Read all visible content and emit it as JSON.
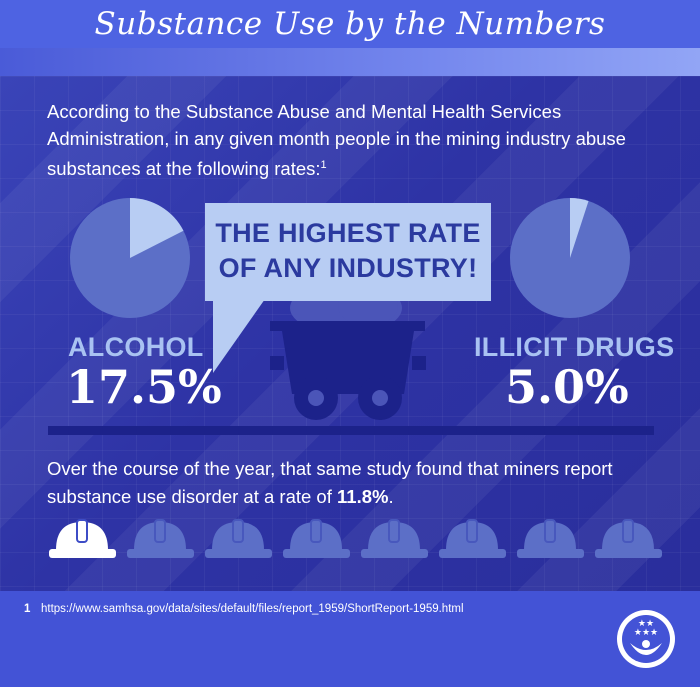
{
  "title": "Substance Use by the Numbers",
  "intro": {
    "text": "According to the Substance Abuse and Mental Health Services Administration, in any given month people in the mining industry abuse substances at the following rates:",
    "footnote_ref": "1"
  },
  "stats": {
    "alcohol": {
      "label": "ALCOHOL",
      "value": "17.5%",
      "fraction": 0.175
    },
    "drugs": {
      "label": "ILLICIT DRUGS",
      "value": "5.0%",
      "fraction": 0.05
    }
  },
  "callout": {
    "line1": "THE HIGHEST RATE",
    "line2": "OF ANY INDUSTRY!"
  },
  "outro": {
    "text": "Over the course of the year, that same study found that miners report substance use disorder at a rate of ",
    "highlight": "11.8%",
    "end": "."
  },
  "helmets": {
    "total": 8,
    "highlighted": 1
  },
  "footnote": {
    "number": "1",
    "url": "https://www.samhsa.gov/data/sites/default/files/report_1959/ShortReport-1959.html"
  },
  "colors": {
    "background": "#2e33a5",
    "title_bar": "#4e63e2",
    "pie_base": "#5c6fc7",
    "pie_slice": "#b8cdf3",
    "label": "#a9c2f2",
    "callout_text": "#2b3a9f",
    "helmet_muted": "#5c6fc7",
    "helmet_active": "#ffffff"
  },
  "icons": [
    "pie-chart-icon",
    "mine-cart-icon",
    "hard-hat-icon",
    "logo-icon"
  ]
}
